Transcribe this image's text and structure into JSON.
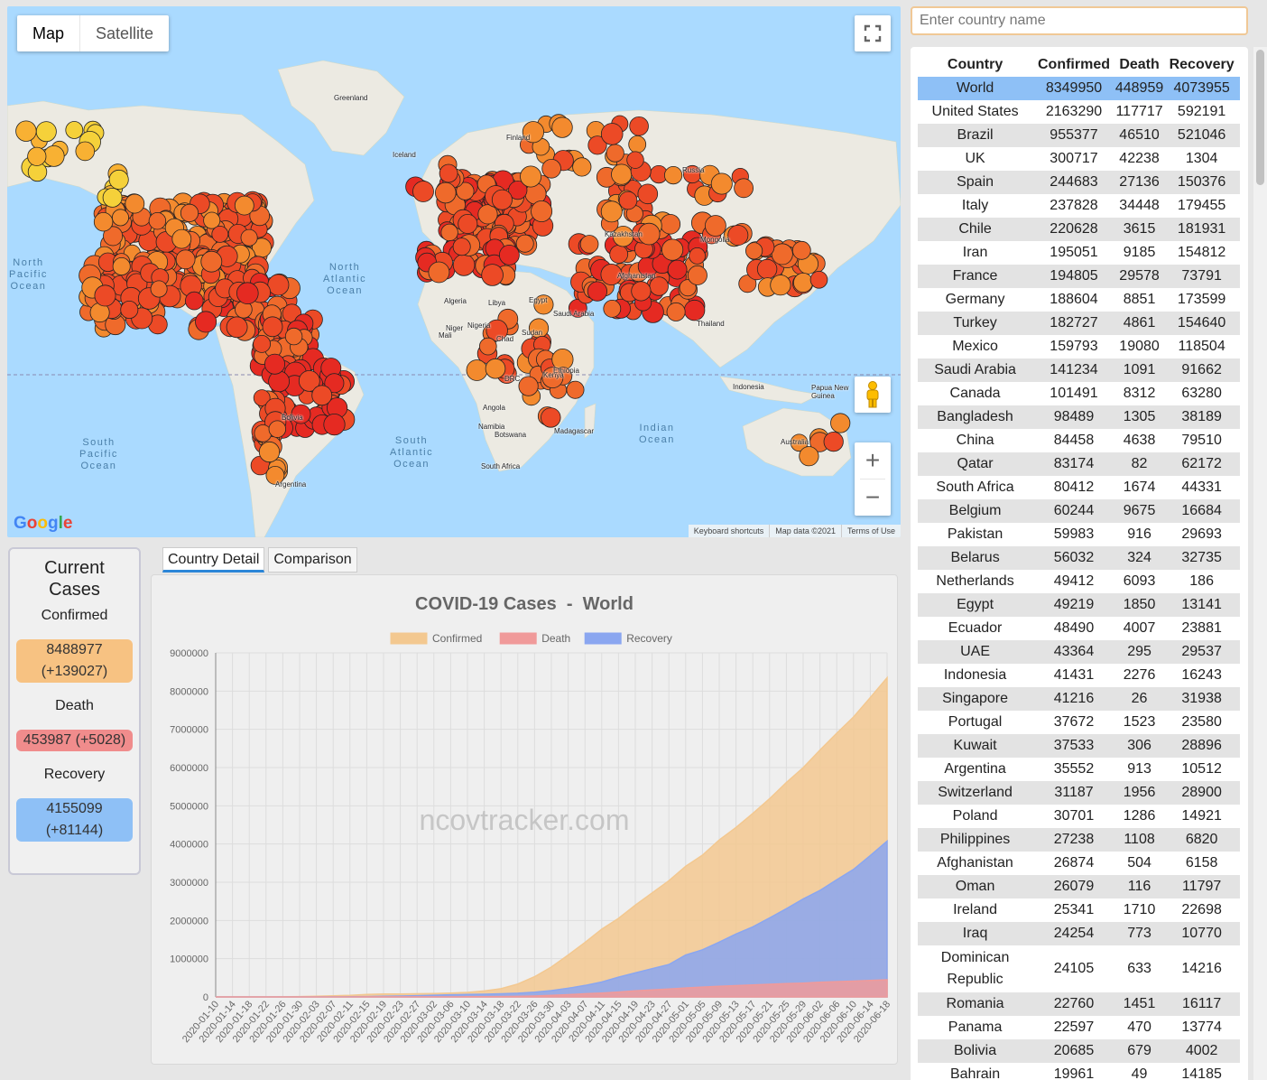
{
  "map": {
    "type_buttons": [
      "Map",
      "Satellite"
    ],
    "ocean_labels": [
      {
        "text": "North\nPacific\nOcean"
      },
      {
        "text": "North\nAtlantic\nOcean"
      },
      {
        "text": "South\nPacific\nOcean"
      },
      {
        "text": "South\nAtlantic\nOcean"
      },
      {
        "text": "Indian\nOcean"
      }
    ],
    "place_labels": [
      "Greenland",
      "Iceland",
      "Finland",
      "Russia",
      "Kazakhstan",
      "Mongolia",
      "Algeria",
      "Libya",
      "Egypt",
      "Saudi Arabia",
      "Niger",
      "Chad",
      "Sudan",
      "DRC",
      "Angola",
      "Namibia",
      "Botswana",
      "South Africa",
      "Madagascar",
      "Ethiopia",
      "Kenya",
      "Thailand",
      "Indonesia",
      "Papua New\nGuinea",
      "Australia",
      "Argentina",
      "Bolivia",
      "Nigeria",
      "Mali",
      "Afghanistan"
    ],
    "footer": [
      "Keyboard shortcuts",
      "Map data ©2021",
      "Terms of Use"
    ],
    "logo": "Google",
    "icons": {
      "fullscreen": "fullscreen-icon",
      "pegman": "pegman-icon",
      "zoom_in": "plus-icon",
      "zoom_out": "minus-icon"
    }
  },
  "search": {
    "placeholder": "Enter country name",
    "value": ""
  },
  "table": {
    "headers": [
      "Country",
      "Confirmed",
      "Death",
      "Recovery"
    ],
    "rows": [
      [
        "World",
        "8349950",
        "448959",
        "4073955"
      ],
      [
        "United States",
        "2163290",
        "117717",
        "592191"
      ],
      [
        "Brazil",
        "955377",
        "46510",
        "521046"
      ],
      [
        "UK",
        "300717",
        "42238",
        "1304"
      ],
      [
        "Spain",
        "244683",
        "27136",
        "150376"
      ],
      [
        "Italy",
        "237828",
        "34448",
        "179455"
      ],
      [
        "Chile",
        "220628",
        "3615",
        "181931"
      ],
      [
        "Iran",
        "195051",
        "9185",
        "154812"
      ],
      [
        "France",
        "194805",
        "29578",
        "73791"
      ],
      [
        "Germany",
        "188604",
        "8851",
        "173599"
      ],
      [
        "Turkey",
        "182727",
        "4861",
        "154640"
      ],
      [
        "Mexico",
        "159793",
        "19080",
        "118504"
      ],
      [
        "Saudi Arabia",
        "141234",
        "1091",
        "91662"
      ],
      [
        "Canada",
        "101491",
        "8312",
        "63280"
      ],
      [
        "Bangladesh",
        "98489",
        "1305",
        "38189"
      ],
      [
        "China",
        "84458",
        "4638",
        "79510"
      ],
      [
        "Qatar",
        "83174",
        "82",
        "62172"
      ],
      [
        "South Africa",
        "80412",
        "1674",
        "44331"
      ],
      [
        "Belgium",
        "60244",
        "9675",
        "16684"
      ],
      [
        "Pakistan",
        "59983",
        "916",
        "29693"
      ],
      [
        "Belarus",
        "56032",
        "324",
        "32735"
      ],
      [
        "Netherlands",
        "49412",
        "6093",
        "186"
      ],
      [
        "Egypt",
        "49219",
        "1850",
        "13141"
      ],
      [
        "Ecuador",
        "48490",
        "4007",
        "23881"
      ],
      [
        "UAE",
        "43364",
        "295",
        "29537"
      ],
      [
        "Indonesia",
        "41431",
        "2276",
        "16243"
      ],
      [
        "Singapore",
        "41216",
        "26",
        "31938"
      ],
      [
        "Portugal",
        "37672",
        "1523",
        "23580"
      ],
      [
        "Kuwait",
        "37533",
        "306",
        "28896"
      ],
      [
        "Argentina",
        "35552",
        "913",
        "10512"
      ],
      [
        "Switzerland",
        "31187",
        "1956",
        "28900"
      ],
      [
        "Poland",
        "30701",
        "1286",
        "14921"
      ],
      [
        "Philippines",
        "27238",
        "1108",
        "6820"
      ],
      [
        "Afghanistan",
        "26874",
        "504",
        "6158"
      ],
      [
        "Oman",
        "26079",
        "116",
        "11797"
      ],
      [
        "Ireland",
        "25341",
        "1710",
        "22698"
      ],
      [
        "Iraq",
        "24254",
        "773",
        "10770"
      ],
      [
        "Dominican Republic",
        "24105",
        "633",
        "14216"
      ],
      [
        "Romania",
        "22760",
        "1451",
        "16117"
      ],
      [
        "Panama",
        "22597",
        "470",
        "13774"
      ],
      [
        "Bolivia",
        "20685",
        "679",
        "4002"
      ],
      [
        "Bahrain",
        "19961",
        "49",
        "14185"
      ]
    ],
    "selected_row": 0
  },
  "current_cases": {
    "title": "Current\nCases",
    "confirmed_label": "Confirmed",
    "confirmed_value": "8488977\n(+139027)",
    "death_label": "Death",
    "death_value": "453987 (+5028)",
    "recovery_label": "Recovery",
    "recovery_value": "4155099\n(+81144)"
  },
  "tabs": [
    "Country Detail",
    "Comparison"
  ],
  "active_tab": 0,
  "colors": {
    "confirmed": "#f7c282",
    "death": "#f08c8c",
    "recovery": "#8ec0f6",
    "accent": "#2b86d8"
  },
  "chart_data": {
    "type": "area",
    "title": "COVID-19 Cases  -  World",
    "watermark": "ncovtracker.com",
    "ylim": [
      0,
      9000000
    ],
    "y_ticks": [
      0,
      1000000,
      2000000,
      3000000,
      4000000,
      5000000,
      6000000,
      7000000,
      8000000,
      9000000
    ],
    "x_tick_labels": [
      "2020-01-10",
      "2020-01-14",
      "2020-01-18",
      "2020-01-22",
      "2020-01-26",
      "2020-01-30",
      "2020-02-03",
      "2020-02-07",
      "2020-02-11",
      "2020-02-15",
      "2020-02-19",
      "2020-02-23",
      "2020-02-27",
      "2020-03-02",
      "2020-03-06",
      "2020-03-10",
      "2020-03-14",
      "2020-03-18",
      "2020-03-22",
      "2020-03-26",
      "2020-03-30",
      "2020-04-03",
      "2020-04-07",
      "2020-04-11",
      "2020-04-15",
      "2020-04-19",
      "2020-04-23",
      "2020-04-27",
      "2020-05-01",
      "2020-05-05",
      "2020-05-09",
      "2020-05-13",
      "2020-05-17",
      "2020-05-21",
      "2020-05-25",
      "2020-05-29",
      "2020-06-02",
      "2020-06-06",
      "2020-06-10",
      "2020-06-14",
      "2020-06-18"
    ],
    "legend_position": "top",
    "grid": true,
    "series": [
      {
        "name": "Confirmed",
        "color": "#f3c890",
        "values": [
          41,
          41,
          45,
          555,
          2019,
          9800,
          17400,
          31500,
          43100,
          67100,
          75700,
          78600,
          82700,
          90400,
          101800,
          119100,
          156100,
          214900,
          336900,
          528200,
          782400,
          1095900,
          1425000,
          1772000,
          2056000,
          2400000,
          2721000,
          3041000,
          3418000,
          3708000,
          4106000,
          4434000,
          4801000,
          5186000,
          5609000,
          5995000,
          6456000,
          6897000,
          7323000,
          7831000,
          8349950
        ]
      },
      {
        "name": "Death",
        "color": "#f09a9a",
        "values": [
          1,
          1,
          2,
          17,
          56,
          213,
          427,
          720,
          1115,
          1526,
          2247,
          2467,
          2809,
          3119,
          3480,
          4262,
          5836,
          8953,
          14706,
          23970,
          40697,
          59160,
          81690,
          102640,
          128110,
          160740,
          184220,
          206580,
          234190,
          256400,
          277000,
          295600,
          315000,
          330000,
          347000,
          361000,
          382000,
          399000,
          414000,
          432000,
          448959
        ]
      },
      {
        "name": "Recovery",
        "color": "#8aa6f0",
        "values": [
          0,
          0,
          0,
          28,
          49,
          180,
          510,
          1700,
          4700,
          9400,
          16100,
          23400,
          32900,
          45600,
          55900,
          64200,
          70100,
          83000,
          97900,
          124400,
          164500,
          226300,
          300300,
          390500,
          516800,
          629000,
          739000,
          849000,
          1095000,
          1232000,
          1433000,
          1646000,
          1833000,
          2066000,
          2308000,
          2562000,
          2786000,
          3066000,
          3335000,
          3700000,
          4073955
        ]
      }
    ]
  }
}
